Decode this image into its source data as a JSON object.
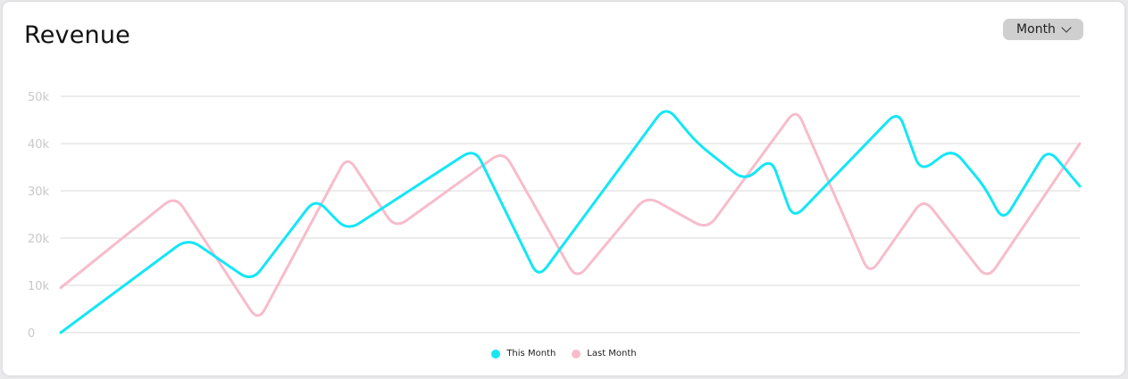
{
  "header": {
    "title": "Revenue",
    "period_selector": "Month"
  },
  "chart_data": {
    "type": "line",
    "title": "Revenue",
    "y_ticks": [
      "0",
      "10k",
      "20k",
      "30k",
      "40k",
      "50k"
    ],
    "y_tick_values": [
      0,
      10000,
      20000,
      30000,
      40000,
      50000
    ],
    "ylim": [
      0,
      50000
    ],
    "x": [
      0,
      1,
      2,
      3,
      4,
      5,
      6,
      7,
      8,
      9,
      10,
      11,
      12,
      13,
      14,
      15,
      16,
      17,
      18,
      19,
      20,
      21,
      22,
      23,
      24,
      25,
      26,
      27,
      28,
      29,
      30,
      31
    ],
    "grid": true,
    "legend_position": "bottom-center",
    "series": [
      {
        "name": "This Month",
        "color": "#14e6f5",
        "points": [
          [
            0,
            0
          ],
          [
            4,
            20000
          ],
          [
            6,
            10800
          ],
          [
            8,
            28500
          ],
          [
            9,
            21500
          ],
          [
            13,
            39000
          ],
          [
            15,
            11500
          ],
          [
            19,
            48000
          ],
          [
            20,
            40000
          ],
          [
            21.5,
            32000
          ],
          [
            22.3,
            37000
          ],
          [
            23,
            24000
          ],
          [
            26.3,
            47000
          ],
          [
            27,
            34000
          ],
          [
            28,
            39000
          ],
          [
            29,
            31000
          ],
          [
            29.6,
            23500
          ],
          [
            31,
            39000
          ],
          [
            32,
            31000
          ]
        ]
      },
      {
        "name": "Last Month",
        "color": "#f7bccb",
        "points": [
          [
            0,
            9500
          ],
          [
            3.6,
            29000
          ],
          [
            6.2,
            2300
          ],
          [
            9,
            37500
          ],
          [
            10.5,
            22000
          ],
          [
            13.9,
            38500
          ],
          [
            16.2,
            11200
          ],
          [
            18.4,
            29000
          ],
          [
            20.3,
            21800
          ],
          [
            23.1,
            47500
          ],
          [
            25.4,
            12200
          ],
          [
            27.1,
            28500
          ],
          [
            29.1,
            11200
          ],
          [
            32,
            40000
          ]
        ]
      }
    ]
  },
  "legend": {
    "this_month": "This Month",
    "last_month": "Last Month"
  }
}
